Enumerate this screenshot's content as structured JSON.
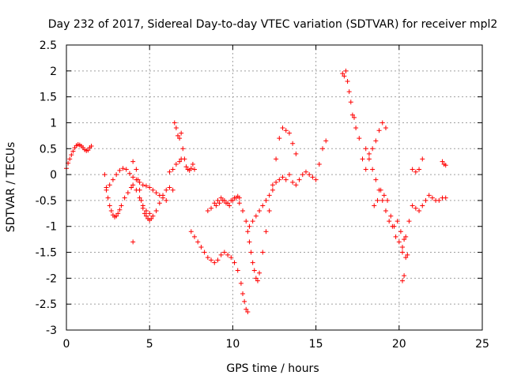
{
  "chart_data": {
    "type": "scatter",
    "title": "Day 232 of 2017, Sidereal Day-to-day VTEC variation (SDTVAR) for receiver mpl2",
    "xlabel": "GPS time / hours",
    "ylabel": "SDTVAR / TECUs",
    "xlim": [
      0,
      25
    ],
    "ylim": [
      -3,
      2.5
    ],
    "xticks": [
      0,
      5,
      10,
      15,
      20,
      25
    ],
    "yticks": [
      -3,
      -2.5,
      -2,
      -1.5,
      -1,
      -0.5,
      0,
      0.5,
      1,
      1.5,
      2,
      2.5
    ],
    "xtick_labels": [
      "0",
      "5",
      "10",
      "15",
      "20",
      "25"
    ],
    "ytick_labels": [
      "-3",
      "-2.5",
      "-2",
      "-1.5",
      "-1",
      "-0.5",
      "0",
      "0.5",
      "1",
      "1.5",
      "2",
      "2.5"
    ],
    "grid": true,
    "marker": "+",
    "series": [
      {
        "name": "SDTVAR",
        "color": "#ff0000",
        "x": [
          0.0,
          0.1,
          0.2,
          0.3,
          0.4,
          0.5,
          0.6,
          0.7,
          0.8,
          0.9,
          1.0,
          1.1,
          1.2,
          1.3,
          1.4,
          1.5,
          2.3,
          2.4,
          2.5,
          2.6,
          2.7,
          2.8,
          2.9,
          3.0,
          3.1,
          3.2,
          3.3,
          3.5,
          3.7,
          3.9,
          4.0,
          4.2,
          4.4,
          4.6,
          4.8,
          5.0,
          5.2,
          5.4,
          5.6,
          5.8,
          6.0,
          6.2,
          6.4,
          2.4,
          2.6,
          2.8,
          3.0,
          3.2,
          3.4,
          3.6,
          3.8,
          4.0,
          4.2,
          4.4,
          4.6,
          4.8,
          5.0,
          5.2,
          5.4,
          5.6,
          5.8,
          6.0,
          4.0,
          4.2,
          4.3,
          4.4,
          4.5,
          4.6,
          4.7,
          4.8,
          4.9,
          5.0,
          5.1,
          6.5,
          6.6,
          6.7,
          6.8,
          6.9,
          7.0,
          7.1,
          7.2,
          7.3,
          7.4,
          7.5,
          7.6,
          7.7,
          6.2,
          6.4,
          6.6,
          6.8,
          6.9,
          4.0,
          7.5,
          7.7,
          7.9,
          8.1,
          8.3,
          8.5,
          8.7,
          8.9,
          9.1,
          9.3,
          9.5,
          9.7,
          9.9,
          10.1,
          10.3,
          10.5,
          10.6,
          10.7,
          10.8,
          10.9,
          8.5,
          8.7,
          8.9,
          9.1,
          9.3,
          9.5,
          9.7,
          9.9,
          10.1,
          10.3,
          10.4,
          9.0,
          9.2,
          9.4,
          9.6,
          9.8,
          10.0,
          10.2,
          10.4,
          10.6,
          10.8,
          10.9,
          11.0,
          11.1,
          11.2,
          11.3,
          11.4,
          11.5,
          11.6,
          11.8,
          12.0,
          12.2,
          12.4,
          12.6,
          12.8,
          13.0,
          13.2,
          13.4,
          13.6,
          13.8,
          11.0,
          11.2,
          11.4,
          11.6,
          11.8,
          12.0,
          12.2,
          12.4,
          12.6,
          12.8,
          13.0,
          13.2,
          13.4,
          13.6,
          13.8,
          14.0,
          14.2,
          14.4,
          14.6,
          14.8,
          15.0,
          15.2,
          15.4,
          15.6,
          16.6,
          16.7,
          16.8,
          16.9,
          17.0,
          17.1,
          17.2,
          17.3,
          17.4,
          17.6,
          17.8,
          18.0,
          18.2,
          18.4,
          18.6,
          18.8,
          19.0,
          19.2,
          18.0,
          18.2,
          18.4,
          18.6,
          18.8,
          19.0,
          19.2,
          19.4,
          19.6,
          19.8,
          20.0,
          20.2,
          20.4,
          20.5,
          18.5,
          18.7,
          18.9,
          19.1,
          19.3,
          19.5,
          19.7,
          19.9,
          20.1,
          20.3,
          20.2,
          20.4,
          20.6,
          20.8,
          21.0,
          21.2,
          21.4,
          21.6,
          21.8,
          22.0,
          22.2,
          22.4,
          22.6,
          22.8,
          20.8,
          21.0,
          21.2,
          21.4,
          20.2,
          20.3,
          22.6,
          22.7,
          22.8
        ],
        "y": [
          0.12,
          0.22,
          0.3,
          0.38,
          0.45,
          0.52,
          0.56,
          0.58,
          0.57,
          0.55,
          0.52,
          0.48,
          0.46,
          0.47,
          0.52,
          0.55,
          0.0,
          -0.25,
          -0.45,
          -0.6,
          -0.7,
          -0.78,
          -0.82,
          -0.8,
          -0.75,
          -0.68,
          -0.6,
          -0.45,
          -0.35,
          -0.25,
          -0.2,
          -0.3,
          -0.45,
          -0.6,
          -0.7,
          -0.75,
          -0.8,
          -0.7,
          -0.55,
          -0.4,
          -0.3,
          -0.25,
          -0.3,
          -0.3,
          -0.2,
          -0.1,
          0.0,
          0.08,
          0.12,
          0.1,
          0.02,
          -0.05,
          -0.1,
          -0.15,
          -0.2,
          -0.22,
          -0.25,
          -0.3,
          -0.35,
          -0.4,
          -0.45,
          -0.5,
          0.25,
          0.1,
          -0.1,
          -0.3,
          -0.5,
          -0.65,
          -0.75,
          -0.8,
          -0.85,
          -0.88,
          -0.85,
          1.0,
          0.9,
          0.75,
          0.7,
          0.8,
          0.5,
          0.3,
          0.15,
          0.1,
          0.08,
          0.12,
          0.2,
          0.1,
          0.05,
          0.1,
          0.2,
          0.25,
          0.3,
          -1.3,
          -1.1,
          -1.2,
          -1.3,
          -1.4,
          -1.5,
          -1.6,
          -1.65,
          -1.7,
          -1.65,
          -1.55,
          -1.5,
          -1.55,
          -1.6,
          -1.7,
          -1.85,
          -2.1,
          -2.3,
          -2.45,
          -2.6,
          -2.65,
          -0.7,
          -0.65,
          -0.55,
          -0.5,
          -0.45,
          -0.5,
          -0.55,
          -0.5,
          -0.45,
          -0.42,
          -0.45,
          -0.6,
          -0.55,
          -0.5,
          -0.55,
          -0.6,
          -0.5,
          -0.45,
          -0.55,
          -0.7,
          -0.9,
          -1.1,
          -1.3,
          -1.5,
          -1.7,
          -1.85,
          -2.0,
          -2.05,
          -1.9,
          -1.5,
          -1.1,
          -0.7,
          -0.2,
          0.3,
          0.7,
          0.9,
          0.85,
          0.8,
          0.6,
          0.4,
          -1.0,
          -0.9,
          -0.8,
          -0.7,
          -0.6,
          -0.5,
          -0.4,
          -0.3,
          -0.15,
          -0.1,
          -0.05,
          -0.1,
          0.0,
          -0.15,
          -0.2,
          -0.1,
          0.0,
          0.05,
          0.0,
          -0.05,
          -0.1,
          0.2,
          0.5,
          0.65,
          1.95,
          1.9,
          2.0,
          1.8,
          1.6,
          1.4,
          1.15,
          1.1,
          0.9,
          0.7,
          0.3,
          0.1,
          0.4,
          0.5,
          0.65,
          0.85,
          1.0,
          0.9,
          0.5,
          0.3,
          0.1,
          -0.1,
          -0.3,
          -0.5,
          -0.7,
          -0.9,
          -1.0,
          -1.2,
          -1.3,
          -1.5,
          -1.6,
          -1.55,
          -0.6,
          -0.5,
          -0.3,
          -0.4,
          -0.5,
          -0.8,
          -1.0,
          -0.9,
          -1.1,
          -1.25,
          -1.4,
          -1.2,
          -0.9,
          -0.6,
          -0.65,
          -0.7,
          -0.6,
          -0.5,
          -0.4,
          -0.45,
          -0.5,
          -0.5,
          -0.45,
          -0.45,
          0.1,
          0.05,
          0.1,
          0.3,
          -2.05,
          -1.95,
          0.25,
          0.2,
          0.18
        ]
      }
    ]
  }
}
